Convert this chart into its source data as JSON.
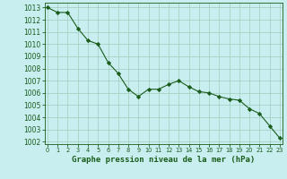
{
  "hours": [
    0,
    1,
    2,
    3,
    4,
    5,
    6,
    7,
    8,
    9,
    10,
    11,
    12,
    13,
    14,
    15,
    16,
    17,
    18,
    19,
    20,
    21,
    22,
    23
  ],
  "pressure": [
    1013.0,
    1012.6,
    1012.6,
    1011.3,
    1010.3,
    1010.0,
    1008.5,
    1007.6,
    1006.3,
    1005.7,
    1006.3,
    1006.3,
    1006.7,
    1007.0,
    1006.5,
    1006.1,
    1006.0,
    1005.7,
    1005.5,
    1005.4,
    1004.7,
    1004.3,
    1003.3,
    1002.3
  ],
  "line_color": "#1a5c1a",
  "marker_color": "#1a5c1a",
  "bg_color": "#c8eef0",
  "grid_color": "#a0ccbb",
  "xlabel": "Graphe pression niveau de la mer (hPa)",
  "xlabel_color": "#1a5c1a",
  "tick_color": "#1a5c1a",
  "ylim": [
    1001.8,
    1013.4
  ],
  "yticks": [
    1002,
    1003,
    1004,
    1005,
    1006,
    1007,
    1008,
    1009,
    1010,
    1011,
    1012,
    1013
  ],
  "xlim": [
    -0.3,
    23.3
  ],
  "xticks": [
    0,
    1,
    2,
    3,
    4,
    5,
    6,
    7,
    8,
    9,
    10,
    11,
    12,
    13,
    14,
    15,
    16,
    17,
    18,
    19,
    20,
    21,
    22,
    23
  ],
  "ytick_fontsize": 5.5,
  "xtick_fontsize": 4.8,
  "xlabel_fontsize": 6.5
}
